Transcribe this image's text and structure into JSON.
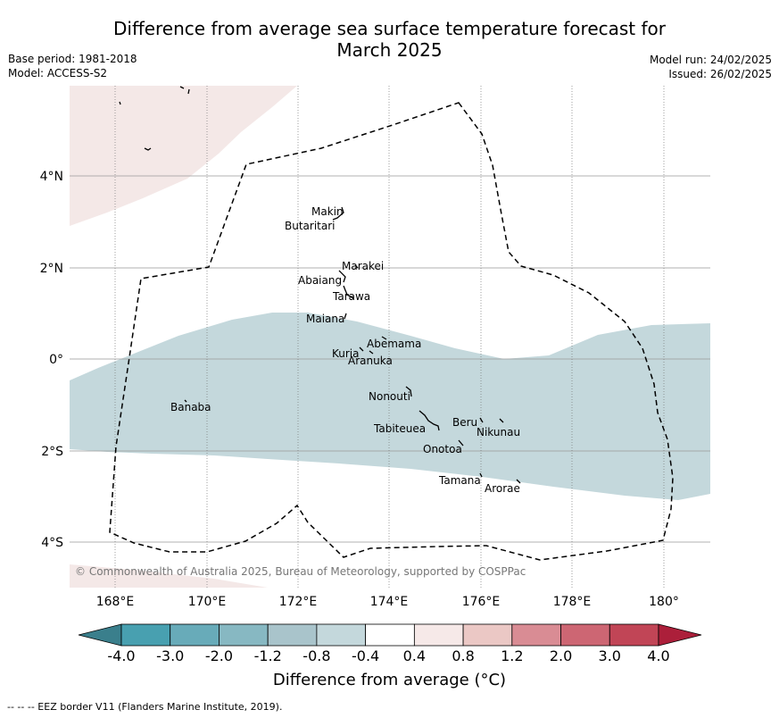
{
  "title_line1": "Difference from average sea surface temperature forecast for",
  "title_line2": "March 2025",
  "base_period": "Base period: 1981-2018",
  "model": "Model: ACCESS-S2",
  "model_run": "Model run: 24/02/2025",
  "issued": "Issued: 26/02/2025",
  "copyright": "© Commonwealth of Australia 2025, Bureau of Meteorology, supported by COSPPac",
  "lat_labels": [
    "4°N",
    "2°N",
    "0°",
    "2°S",
    "4°S"
  ],
  "lon_labels": [
    "168°E",
    "170°E",
    "172°E",
    "174°E",
    "176°E",
    "178°E",
    "180°"
  ],
  "islands": [
    "Makin",
    "Butaritari",
    "Marakei",
    "Abaiang",
    "Tarawa",
    "Maiana",
    "Abemama",
    "Kuria",
    "Aranuka",
    "Nonouti",
    "Banaba",
    "Beru",
    "Nikunau",
    "Tabiteuea",
    "Onotoa",
    "Tamana",
    "Arorae"
  ],
  "colorbar": {
    "ticks": [
      "-4.0",
      "-3.0",
      "-2.0",
      "-1.2",
      "-0.8",
      "-0.4",
      "0.4",
      "0.8",
      "1.2",
      "2.0",
      "3.0",
      "4.0"
    ],
    "colors": [
      "#48a0b0",
      "#68abb9",
      "#87b8c2",
      "#a9c4cb",
      "#c4d8dc",
      "#ffffff",
      "#f6e9e8",
      "#ebc8c5",
      "#d98c94",
      "#cd6673",
      "#c14556"
    ],
    "under_color": "#3a7f8c",
    "over_color": "#ac1f3a",
    "label": "Difference from average (°C)"
  },
  "legend_footer": "--  --  -- EEZ border V11 (Flanders Marine Institute, 2019)."
}
